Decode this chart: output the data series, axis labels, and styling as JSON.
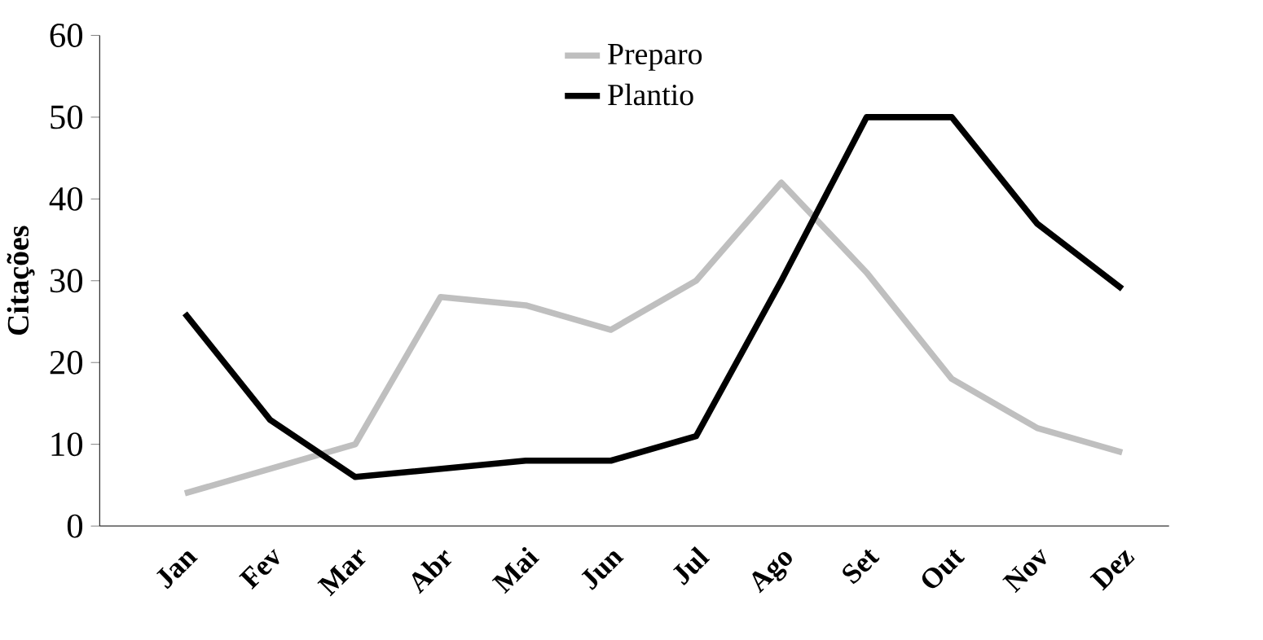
{
  "chart_data": {
    "type": "line",
    "ylabel": "Citações",
    "categories": [
      "Jan",
      "Fev",
      "Mar",
      "Abr",
      "Mai",
      "Jun",
      "Jul",
      "Ago",
      "Set",
      "Out",
      "Nov",
      "Dez"
    ],
    "series": [
      {
        "name": "Preparo",
        "color": "#bfbfbf",
        "values": [
          4,
          7,
          10,
          28,
          27,
          24,
          30,
          42,
          31,
          18,
          12,
          9
        ]
      },
      {
        "name": "Plantio",
        "color": "#000000",
        "values": [
          26,
          13,
          6,
          7,
          8,
          8,
          11,
          30,
          50,
          50,
          37,
          29
        ]
      }
    ],
    "ylim": [
      0,
      60
    ],
    "yticks": [
      0,
      10,
      20,
      30,
      40,
      50,
      60
    ],
    "grid": false,
    "legend": "top",
    "marker": "none",
    "line_style": "solid"
  }
}
